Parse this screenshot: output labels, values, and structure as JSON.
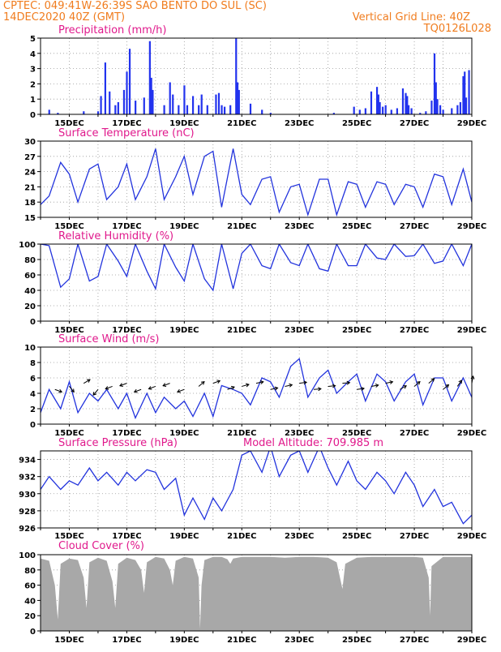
{
  "header": {
    "line1": "CPTEC:   049:41W-26:39S   SAO BENTO DO SUL (SC)",
    "line2": "14DEC2020 40Z (GMT)",
    "grid_note": "Vertical Grid Line: 40Z",
    "code": "TQ0126L028"
  },
  "colors": {
    "header": "#f07c1e",
    "titles": "#e0198c",
    "series": "#2233dd",
    "bars": "#2233ee",
    "cloud": "#a8a8a8",
    "arrows": "#000000"
  },
  "x_tick_labels": [
    "15DEC",
    "17DEC",
    "19DEC",
    "21DEC",
    "23DEC",
    "25DEC",
    "27DEC",
    "29DEC"
  ],
  "chart_data": [
    {
      "type": "bar",
      "title": "Precipitation (mm/h)",
      "ylim": [
        0,
        5
      ],
      "yticks": [
        "0",
        "1",
        "2",
        "3",
        "4",
        "5"
      ],
      "x_unit": "day of December 2020 (GMT)",
      "x": [
        14.3,
        14.6,
        15.5,
        16.0,
        16.1,
        16.25,
        16.4,
        16.6,
        16.7,
        16.9,
        17.0,
        17.1,
        17.3,
        17.6,
        17.8,
        17.85,
        17.9,
        18.3,
        18.5,
        18.6,
        18.8,
        19.0,
        19.1,
        19.3,
        19.5,
        19.6,
        19.8,
        20.1,
        20.2,
        20.3,
        20.4,
        20.6,
        20.8,
        20.85,
        20.9,
        21.3,
        21.7,
        22.0,
        24.2,
        24.9,
        25.1,
        25.3,
        25.5,
        25.7,
        25.75,
        25.8,
        25.9,
        26.0,
        26.2,
        26.4,
        26.6,
        26.7,
        26.75,
        26.8,
        26.9,
        27.2,
        27.4,
        27.6,
        27.7,
        27.75,
        27.8,
        27.9,
        28.0,
        28.3,
        28.5,
        28.6,
        28.7,
        28.75,
        28.8,
        28.9
      ],
      "values": [
        0.3,
        0.1,
        0.2,
        0.2,
        1.2,
        3.4,
        1.5,
        0.6,
        0.8,
        1.6,
        2.8,
        4.3,
        0.9,
        1.1,
        4.8,
        2.4,
        1.6,
        0.6,
        2.1,
        1.3,
        0.6,
        1.9,
        0.6,
        1.2,
        0.6,
        1.3,
        0.6,
        1.3,
        1.4,
        0.6,
        0.5,
        0.6,
        5.0,
        2.1,
        1.6,
        0.7,
        0.3,
        0.1,
        0.1,
        0.5,
        0.3,
        0.4,
        1.5,
        1.8,
        1.3,
        0.8,
        0.5,
        0.6,
        0.3,
        0.4,
        1.7,
        1.4,
        1.2,
        0.6,
        0.4,
        0.1,
        0.2,
        0.9,
        4.0,
        2.1,
        1.0,
        0.6,
        0.3,
        0.4,
        0.6,
        0.8,
        2.5,
        2.8,
        1.1,
        2.9
      ]
    },
    {
      "type": "line",
      "title": "Surface Temperature (nC)",
      "ylim": [
        15,
        30
      ],
      "yticks": [
        "15",
        "18",
        "21",
        "24",
        "27",
        "30"
      ],
      "x_unit": "day of December 2020 (GMT)",
      "x": [
        14.0,
        14.3,
        14.7,
        15.0,
        15.3,
        15.7,
        16.0,
        16.3,
        16.7,
        17.0,
        17.3,
        17.7,
        18.0,
        18.3,
        18.7,
        19.0,
        19.3,
        19.7,
        20.0,
        20.3,
        20.7,
        21.0,
        21.3,
        21.7,
        22.0,
        22.3,
        22.7,
        23.0,
        23.3,
        23.7,
        24.0,
        24.3,
        24.7,
        25.0,
        25.3,
        25.7,
        26.0,
        26.3,
        26.7,
        27.0,
        27.3,
        27.7,
        28.0,
        28.3,
        28.7,
        29.0
      ],
      "values": [
        17.5,
        19.2,
        25.8,
        23.5,
        18.0,
        24.5,
        25.5,
        18.5,
        21.0,
        25.5,
        18.5,
        23.0,
        28.5,
        18.5,
        23.0,
        27.0,
        19.5,
        27.0,
        28.0,
        17.0,
        28.5,
        19.5,
        17.5,
        22.5,
        23.0,
        16.0,
        21.0,
        21.5,
        15.5,
        22.5,
        22.5,
        15.5,
        22.0,
        21.5,
        17.0,
        22.0,
        21.5,
        17.5,
        21.5,
        21.0,
        17.0,
        23.5,
        23.0,
        17.5,
        24.5,
        18.0
      ]
    },
    {
      "type": "line",
      "title": "Relative Humidity (%)",
      "ylim": [
        0,
        100
      ],
      "yticks": [
        "0",
        "20",
        "40",
        "60",
        "80",
        "100"
      ],
      "x_unit": "day of December 2020 (GMT)",
      "x": [
        14.0,
        14.3,
        14.7,
        15.0,
        15.3,
        15.7,
        16.0,
        16.3,
        16.7,
        17.0,
        17.3,
        17.7,
        18.0,
        18.3,
        18.7,
        19.0,
        19.3,
        19.7,
        20.0,
        20.3,
        20.7,
        21.0,
        21.3,
        21.7,
        22.0,
        22.3,
        22.7,
        23.0,
        23.3,
        23.7,
        24.0,
        24.3,
        24.7,
        25.0,
        25.3,
        25.7,
        26.0,
        26.3,
        26.7,
        27.0,
        27.3,
        27.7,
        28.0,
        28.3,
        28.7,
        29.0
      ],
      "values": [
        100,
        98,
        44,
        55,
        100,
        52,
        58,
        100,
        78,
        58,
        100,
        65,
        42,
        100,
        70,
        52,
        100,
        55,
        40,
        100,
        42,
        88,
        100,
        72,
        68,
        100,
        76,
        72,
        100,
        68,
        65,
        100,
        72,
        72,
        100,
        82,
        80,
        100,
        84,
        85,
        100,
        75,
        78,
        100,
        72,
        100
      ]
    },
    {
      "type": "line",
      "title": "Surface Wind (m/s)",
      "ylim": [
        0,
        10
      ],
      "yticks": [
        "0",
        "2",
        "4",
        "6",
        "8",
        "10"
      ],
      "x_unit": "day of December 2020 (GMT)",
      "x": [
        14.0,
        14.3,
        14.7,
        15.0,
        15.3,
        15.7,
        16.0,
        16.3,
        16.7,
        17.0,
        17.3,
        17.7,
        18.0,
        18.3,
        18.7,
        19.0,
        19.3,
        19.7,
        20.0,
        20.3,
        20.7,
        21.0,
        21.3,
        21.7,
        22.0,
        22.3,
        22.7,
        23.0,
        23.3,
        23.7,
        24.0,
        24.3,
        24.7,
        25.0,
        25.3,
        25.7,
        26.0,
        26.3,
        26.7,
        27.0,
        27.3,
        27.7,
        28.0,
        28.3,
        28.7,
        29.0
      ],
      "values": [
        1.5,
        4.5,
        2.0,
        5.5,
        1.5,
        4.0,
        3.0,
        4.5,
        2.0,
        4.0,
        0.8,
        4.0,
        1.5,
        3.5,
        2.0,
        3.0,
        1.0,
        4.0,
        1.0,
        5.0,
        4.5,
        4.0,
        2.5,
        6.0,
        5.5,
        3.5,
        7.5,
        8.5,
        3.5,
        6.0,
        7.0,
        4.0,
        5.5,
        6.5,
        3.0,
        6.5,
        5.5,
        3.0,
        5.5,
        6.5,
        2.5,
        6.0,
        6.0,
        3.0,
        6.0,
        3.5
      ],
      "wind_arrows_direction_deg": [
        -20,
        -50,
        30,
        -130,
        200,
        200,
        200,
        200,
        200,
        200,
        40,
        20,
        20,
        15,
        12,
        12,
        12,
        8,
        5,
        5,
        5,
        8,
        10,
        12,
        30,
        40,
        40,
        40,
        55,
        80
      ],
      "wind_arrows_at": [
        14.5,
        15.0,
        15.5,
        16.0,
        16.5,
        17.0,
        17.5,
        18.0,
        18.5,
        19.0,
        19.5,
        20.0,
        20.5,
        21.0,
        21.5,
        22.0,
        22.5,
        23.0,
        23.5,
        24.0,
        24.5,
        25.0,
        25.5,
        26.0,
        26.5,
        27.0,
        27.5,
        28.0,
        28.5,
        29.0
      ]
    },
    {
      "type": "line",
      "title": "Surface Pressure (hPa)",
      "annotation": "Model Altitude: 709.985 m",
      "ylim": [
        926,
        935
      ],
      "yticks": [
        "926",
        "928",
        "930",
        "932",
        "934"
      ],
      "x_unit": "day of December 2020 (GMT)",
      "x": [
        14.0,
        14.3,
        14.7,
        15.0,
        15.3,
        15.7,
        16.0,
        16.3,
        16.7,
        17.0,
        17.3,
        17.7,
        18.0,
        18.3,
        18.7,
        19.0,
        19.3,
        19.7,
        20.0,
        20.3,
        20.7,
        21.0,
        21.3,
        21.7,
        22.0,
        22.3,
        22.7,
        23.0,
        23.3,
        23.7,
        24.0,
        24.3,
        24.7,
        25.0,
        25.3,
        25.7,
        26.0,
        26.3,
        26.7,
        27.0,
        27.3,
        27.7,
        28.0,
        28.3,
        28.7,
        29.0
      ],
      "values": [
        930.5,
        932.0,
        930.5,
        931.5,
        931.0,
        933.0,
        931.5,
        932.5,
        931.0,
        932.5,
        931.5,
        932.8,
        932.5,
        930.5,
        931.8,
        927.5,
        929.5,
        927.0,
        929.5,
        928.0,
        930.5,
        934.5,
        935.0,
        932.5,
        935.5,
        932.0,
        934.5,
        935.0,
        932.5,
        935.5,
        933.0,
        931.0,
        933.8,
        931.5,
        930.5,
        932.5,
        931.5,
        930.0,
        932.5,
        931.0,
        928.5,
        930.5,
        928.5,
        929.0,
        926.5,
        927.5
      ]
    },
    {
      "type": "area",
      "title": "Cloud Cover (%)",
      "ylim": [
        0,
        100
      ],
      "yticks": [
        "0",
        "20",
        "40",
        "60",
        "80",
        "100"
      ],
      "x_unit": "day of December 2020 (GMT)",
      "x": [
        14.0,
        14.3,
        14.5,
        14.6,
        14.7,
        15.0,
        15.3,
        15.5,
        15.6,
        15.7,
        16.0,
        16.3,
        16.5,
        16.6,
        16.7,
        17.0,
        17.3,
        17.5,
        17.6,
        17.7,
        18.0,
        18.3,
        18.5,
        18.6,
        18.7,
        19.0,
        19.3,
        19.5,
        19.55,
        19.6,
        19.7,
        20.0,
        20.3,
        20.5,
        20.6,
        20.7,
        21.0,
        21.5,
        22.0,
        22.5,
        23.0,
        23.5,
        24.0,
        24.3,
        24.5,
        24.6,
        25.0,
        25.5,
        26.0,
        26.5,
        27.0,
        27.3,
        27.5,
        27.55,
        27.6,
        28.0,
        28.5,
        29.0
      ],
      "values": [
        95,
        92,
        60,
        15,
        88,
        95,
        93,
        70,
        30,
        90,
        96,
        92,
        65,
        30,
        88,
        96,
        93,
        80,
        50,
        90,
        97,
        95,
        80,
        60,
        92,
        97,
        95,
        70,
        3,
        60,
        93,
        97,
        97,
        94,
        88,
        95,
        97,
        97,
        97,
        96,
        97,
        97,
        96,
        90,
        55,
        88,
        96,
        97,
        97,
        97,
        97,
        96,
        70,
        20,
        85,
        97,
        97,
        97
      ]
    }
  ]
}
